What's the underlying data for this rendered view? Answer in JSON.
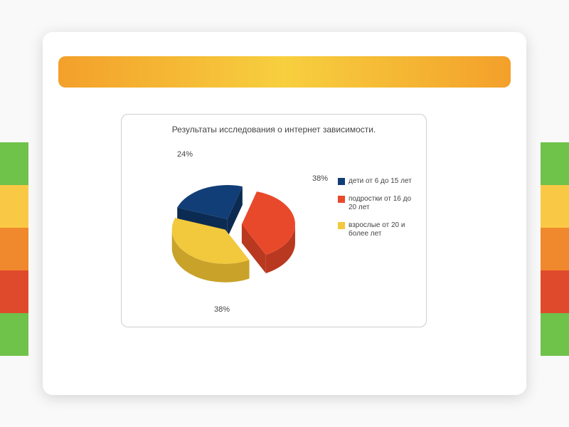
{
  "bg_bands": {
    "colors": [
      "#6fc24a",
      "#f9c946",
      "#f0882d",
      "#e04a2c",
      "#6fc24a"
    ]
  },
  "slide": {
    "header_gradient_from": "#f3a02a",
    "header_gradient_to": "#f7cf3f"
  },
  "chart": {
    "type": "pie-exploded-3d",
    "title": "Результаты исследования о интернет зависимости.",
    "title_fontsize": 12,
    "title_color": "#444444",
    "background": "#ffffff",
    "border_color": "#cfcfcf",
    "slices": [
      {
        "label": "дети от 6 до 15 лет",
        "value": 24,
        "color": "#123e77",
        "side_color": "#0c2b52"
      },
      {
        "label": "подростки от 16 до 20 лет",
        "value": 38,
        "color": "#e9492b",
        "side_color": "#b83820"
      },
      {
        "label": "взрослые от 20 и более лет",
        "value": 38,
        "color": "#f2c83d",
        "side_color": "#c9a22a"
      }
    ],
    "pct_labels": [
      {
        "text": "24%",
        "for": 0
      },
      {
        "text": "38%",
        "for": 1
      },
      {
        "text": "38%",
        "for": 2
      }
    ],
    "legend": {
      "swatch_size": 10,
      "fontsize": 10,
      "text_color": "#444444"
    }
  }
}
